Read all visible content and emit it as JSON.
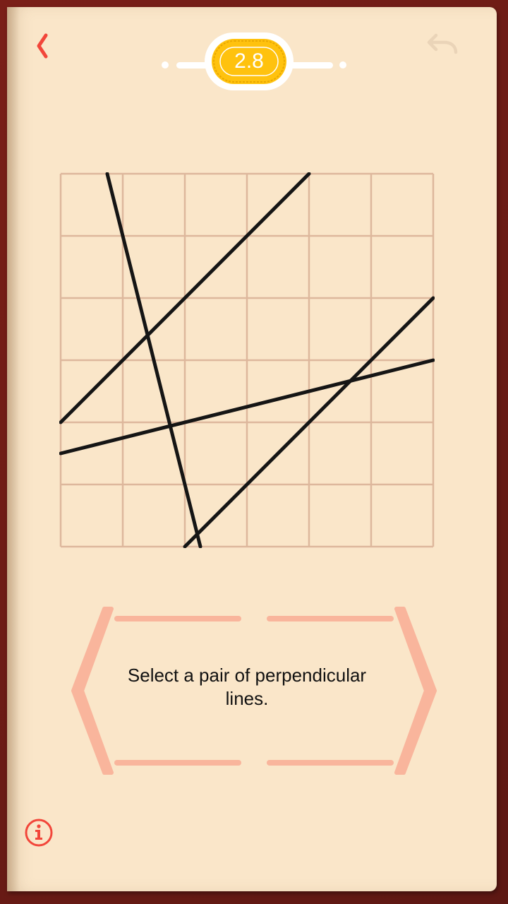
{
  "header": {
    "back_icon": "chevron-left-icon",
    "undo_icon": "undo-icon",
    "level_number": "2.8",
    "accent_color": "#f2463a",
    "badge_color": "#ffc20e"
  },
  "puzzle": {
    "grid": {
      "columns": 6,
      "rows": 6
    },
    "lines": [
      {
        "id": "line-a",
        "from": [
          0.75,
          0
        ],
        "to": [
          2.25,
          6
        ]
      },
      {
        "id": "line-b",
        "from": [
          0,
          4
        ],
        "to": [
          4,
          0
        ]
      },
      {
        "id": "line-c",
        "from": [
          2,
          6
        ],
        "to": [
          6,
          2
        ]
      },
      {
        "id": "line-d",
        "from": [
          0,
          4.5
        ],
        "to": [
          6,
          3
        ]
      }
    ]
  },
  "prompt": {
    "text": "Select a pair of perpendicular lines."
  },
  "footer": {
    "info_icon": "info-icon"
  }
}
